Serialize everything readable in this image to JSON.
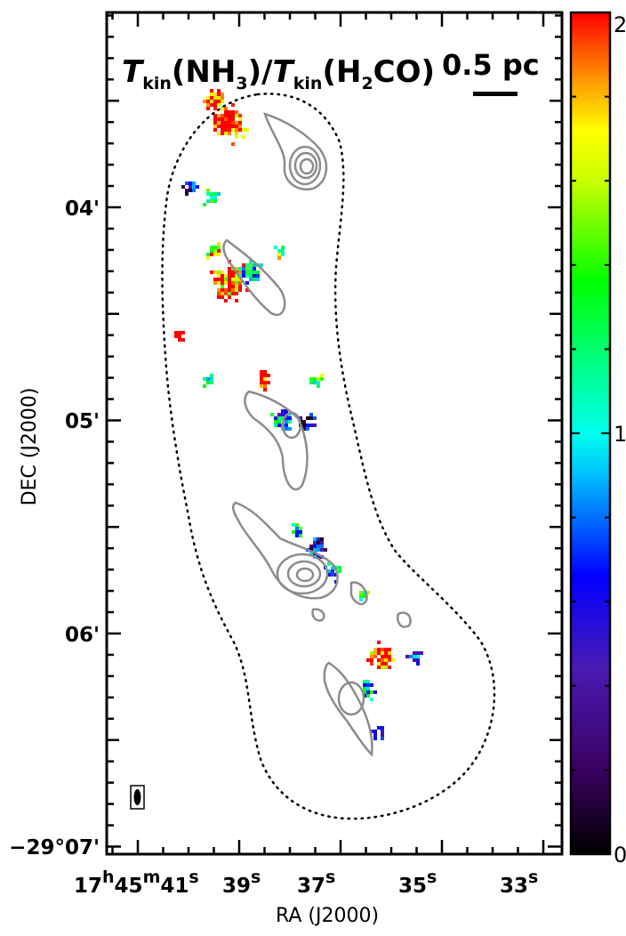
{
  "chart_data": {
    "type": "heatmap",
    "title": {
      "t1": "T",
      "s1": "kin",
      "mid1": "(NH",
      "s2": "3",
      "mid2": ")/",
      "t2": "T",
      "s3": "kin",
      "mid3": "(H",
      "s4": "2",
      "mid4": "CO)"
    },
    "xlabel": "RA (J2000)",
    "ylabel": "DEC (J2000)",
    "x_ticks": [
      {
        "h": "17",
        "hs": "h",
        "m": "45",
        "ms": "m",
        "s": "41",
        "ss": "s"
      },
      {
        "s": "39",
        "ss": "s"
      },
      {
        "s": "37",
        "ss": "s"
      },
      {
        "s": "35",
        "ss": "s"
      },
      {
        "s": "33",
        "ss": "s"
      }
    ],
    "y_ticks": [
      {
        "label": "04'"
      },
      {
        "label": "05'"
      },
      {
        "label": "06'"
      },
      {
        "label": "−29°07'"
      }
    ],
    "scalebar": {
      "label": "0.5 pc"
    },
    "colorbar": {
      "min": 0,
      "max": 2,
      "tick_labels": [
        "0",
        "1",
        "2"
      ],
      "colormap": "rainbow (black-purple-blue-cyan-green-yellow-red)"
    },
    "beam": "ellipse bottom-left",
    "contours": "grey, peaks near RA 37.7s DEC -29°03.8' and RA 37.6s DEC -29°05.7'",
    "boundary": "dotted outline around mapped region",
    "clumps": [
      {
        "ra": 39.2,
        "dec": 3.6,
        "r": 0.08,
        "v": 2.0
      },
      {
        "ra": 39.5,
        "dec": 3.5,
        "r": 0.05,
        "v": 2.0
      },
      {
        "ra": 40.0,
        "dec": 3.9,
        "r": 0.04,
        "v": 0.5
      },
      {
        "ra": 39.6,
        "dec": 3.95,
        "r": 0.04,
        "v": 1.3
      },
      {
        "ra": 39.2,
        "dec": 4.35,
        "r": 0.09,
        "v": 1.9
      },
      {
        "ra": 38.8,
        "dec": 4.3,
        "r": 0.05,
        "v": 1.1
      },
      {
        "ra": 39.5,
        "dec": 4.2,
        "r": 0.04,
        "v": 1.6
      },
      {
        "ra": 38.2,
        "dec": 4.2,
        "r": 0.03,
        "v": 1.4
      },
      {
        "ra": 40.2,
        "dec": 4.6,
        "r": 0.03,
        "v": 2.0
      },
      {
        "ra": 39.6,
        "dec": 4.8,
        "r": 0.03,
        "v": 1.2
      },
      {
        "ra": 38.5,
        "dec": 4.8,
        "r": 0.04,
        "v": 2.0
      },
      {
        "ra": 38.2,
        "dec": 5.0,
        "r": 0.05,
        "v": 0.9
      },
      {
        "ra": 37.7,
        "dec": 5.0,
        "r": 0.04,
        "v": 0.4
      },
      {
        "ra": 37.5,
        "dec": 4.8,
        "r": 0.03,
        "v": 1.3
      },
      {
        "ra": 37.9,
        "dec": 5.5,
        "r": 0.03,
        "v": 1.1
      },
      {
        "ra": 37.5,
        "dec": 5.6,
        "r": 0.05,
        "v": 0.5
      },
      {
        "ra": 37.2,
        "dec": 5.7,
        "r": 0.04,
        "v": 1.0
      },
      {
        "ra": 36.6,
        "dec": 5.8,
        "r": 0.03,
        "v": 1.2
      },
      {
        "ra": 36.2,
        "dec": 6.1,
        "r": 0.06,
        "v": 2.0
      },
      {
        "ra": 35.6,
        "dec": 6.1,
        "r": 0.04,
        "v": 0.7
      },
      {
        "ra": 36.5,
        "dec": 6.25,
        "r": 0.04,
        "v": 1.0
      },
      {
        "ra": 36.3,
        "dec": 6.45,
        "r": 0.04,
        "v": 0.8
      }
    ]
  }
}
